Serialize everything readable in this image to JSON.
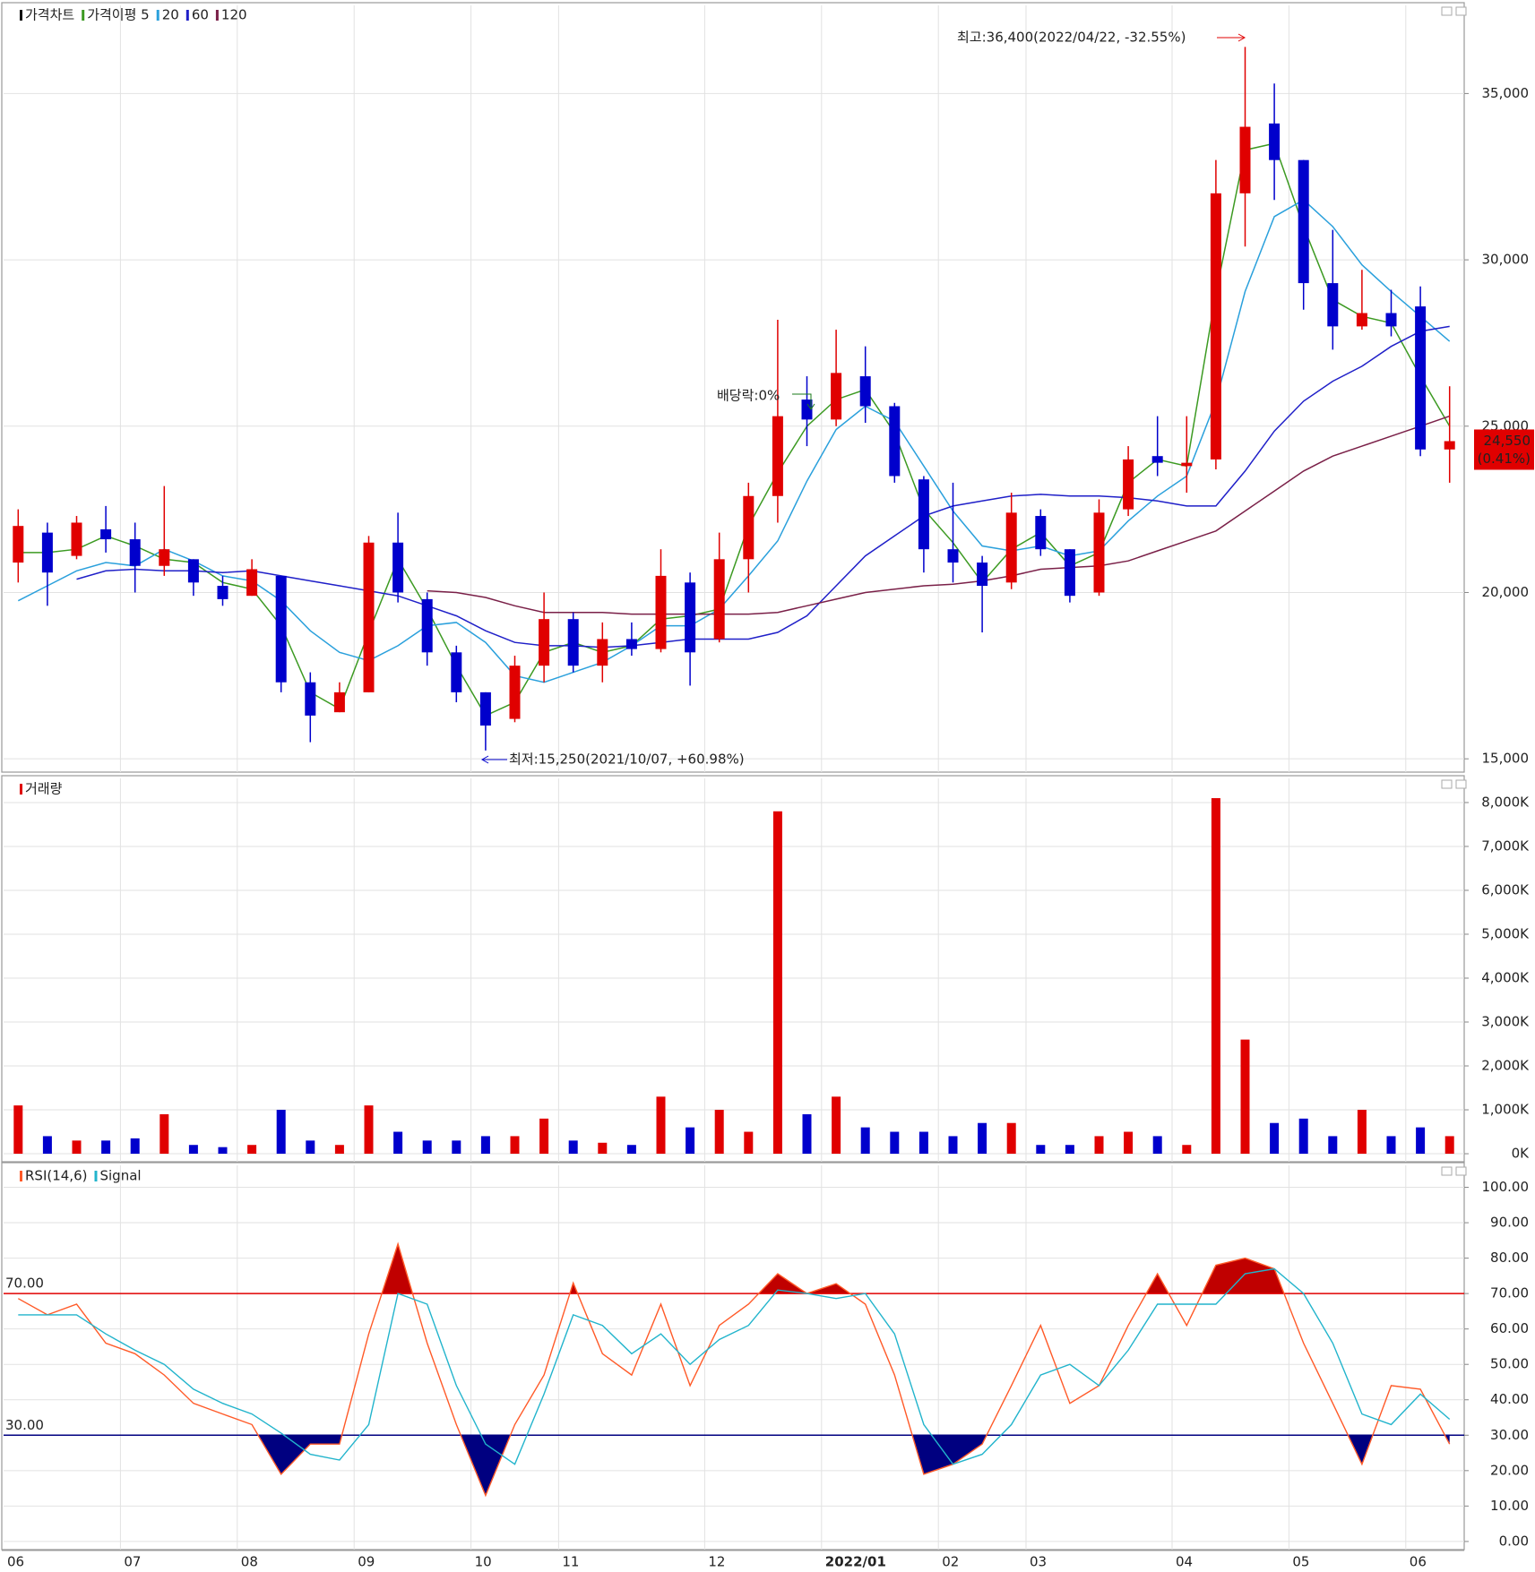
{
  "chart_data": [
    {
      "type": "candlestick",
      "name": "가격차트",
      "open": [
        20900,
        21800,
        21100,
        21900,
        21600,
        20800,
        21000,
        20200,
        19900,
        20500,
        17300,
        16400,
        17000,
        21500,
        19800,
        18200,
        17000,
        16200,
        17800,
        19200,
        17800,
        18600,
        18300,
        20300,
        18600,
        21000,
        22900,
        25800,
        25200,
        26500,
        25600,
        23400,
        21300,
        20900,
        20300,
        22300,
        21300,
        20000,
        22500,
        24100,
        23800,
        24000,
        32000,
        34100,
        33000,
        29300,
        28000,
        28400,
        28600,
        24300
      ],
      "high": [
        22500,
        22100,
        22300,
        22600,
        22100,
        23200,
        21000,
        20500,
        21000,
        20500,
        17600,
        17300,
        21700,
        22400,
        20000,
        18400,
        17000,
        18100,
        20000,
        19400,
        19100,
        19100,
        21300,
        20600,
        21800,
        23300,
        28200,
        26500,
        27900,
        27400,
        25700,
        23500,
        23300,
        21100,
        23000,
        22500,
        21300,
        22800,
        24400,
        25300,
        25300,
        33000,
        36400,
        35300,
        33000,
        30900,
        29700,
        29100,
        29200,
        26200
      ],
      "low": [
        20300,
        19600,
        21000,
        21200,
        20000,
        20500,
        19900,
        19600,
        19900,
        17000,
        15500,
        16400,
        17000,
        19700,
        17800,
        16700,
        15250,
        16100,
        17300,
        17600,
        17300,
        18100,
        18200,
        17200,
        18500,
        20000,
        22100,
        24400,
        25000,
        25100,
        23300,
        20600,
        20300,
        18800,
        20100,
        21100,
        19700,
        19900,
        22300,
        23500,
        23000,
        23700,
        30400,
        31800,
        28500,
        27300,
        27900,
        27700,
        24100,
        23300
      ],
      "close": [
        22000,
        20600,
        22100,
        21600,
        20800,
        21300,
        20300,
        19800,
        20700,
        17300,
        16300,
        17000,
        21500,
        20000,
        18200,
        17000,
        16000,
        17800,
        19200,
        17800,
        18600,
        18300,
        20500,
        18200,
        21000,
        22900,
        25300,
        25200,
        26600,
        25600,
        23500,
        21300,
        20900,
        20200,
        22400,
        21300,
        19900,
        22400,
        24000,
        23900,
        23900,
        32000,
        34000,
        33000,
        29300,
        28000,
        28400,
        28000,
        24300,
        24550
      ],
      "up_color": "#e00000",
      "down_color": "#0000cc",
      "series": [
        {
          "name": "가격이평 5",
          "color": "#3c9a22",
          "values": [
            21200,
            21200,
            21300,
            21700,
            21400,
            21000,
            20900,
            20300,
            20100,
            19000,
            17000,
            16500,
            18800,
            21000,
            19500,
            17800,
            16300,
            16700,
            18200,
            18500,
            18200,
            18400,
            19200,
            19300,
            19500,
            22000,
            23600,
            25000,
            25800,
            26100,
            24800,
            22500,
            21500,
            20300,
            21300,
            21800,
            20800,
            21200,
            23300,
            24000,
            23800,
            29000,
            33300,
            33500,
            31000,
            28800,
            28300,
            28100,
            26500,
            25000
          ]
        },
        {
          "name": "20",
          "color": "#2aa0dc",
          "values": [
            19750,
            20200,
            20650,
            20900,
            20800,
            21300,
            20950,
            20500,
            20350,
            19750,
            18850,
            18200,
            17950,
            18400,
            19000,
            19100,
            18500,
            17500,
            17300,
            17600,
            17900,
            18400,
            19000,
            19000,
            19500,
            20500,
            21550,
            23350,
            24900,
            25600,
            25150,
            23800,
            22450,
            21400,
            21250,
            21400,
            21100,
            21250,
            22150,
            22900,
            23500,
            25750,
            29050,
            31300,
            31800,
            31000,
            29850,
            29050,
            28300,
            27550
          ]
        },
        {
          "name": "60",
          "color": "#1f1fc8",
          "values": [
            null,
            null,
            20400,
            20650,
            20700,
            20650,
            20650,
            20600,
            20650,
            20500,
            20350,
            20200,
            20050,
            19900,
            19600,
            19300,
            18850,
            18500,
            18400,
            18400,
            18350,
            18400,
            18500,
            18600,
            18600,
            18600,
            18800,
            19300,
            20200,
            21100,
            21700,
            22300,
            22600,
            22750,
            22900,
            22950,
            22900,
            22900,
            22850,
            22750,
            22600,
            22600,
            23650,
            24850,
            25750,
            26350,
            26800,
            27400,
            27850,
            28000
          ]
        },
        {
          "name": "120",
          "color": "#7a2048",
          "values": [
            null,
            null,
            null,
            null,
            null,
            null,
            null,
            null,
            null,
            null,
            null,
            null,
            null,
            null,
            20050,
            20000,
            19850,
            19600,
            19400,
            19400,
            19400,
            19350,
            19350,
            19350,
            19350,
            19350,
            19400,
            19600,
            19800,
            20000,
            20100,
            20200,
            20250,
            20350,
            20500,
            20700,
            20750,
            20800,
            20950,
            21250,
            21550,
            21850,
            22450,
            23050,
            23650,
            24100,
            24400,
            24700,
            25000,
            25300
          ]
        }
      ],
      "ylim": [
        14600,
        37650
      ],
      "yticks": [
        {
          "value": 15000,
          "label": "15,000"
        },
        {
          "value": 20000,
          "label": "20,000"
        },
        {
          "value": 25000,
          "label": "25,000"
        },
        {
          "value": 30000,
          "label": "30,000"
        },
        {
          "value": 35000,
          "label": "35,000"
        }
      ],
      "grid": true,
      "annotations": [
        "최고:36,400(2022/04/22, -32.55%)",
        "최저:15,250(2021/10/07, +60.98%)",
        "배당락:0%"
      ],
      "last_price": {
        "value": 24550,
        "label": "24,550"
      },
      "last_change": "(0.41%)"
    },
    {
      "type": "bar",
      "name": "거래량",
      "values": [
        1100,
        400,
        300,
        300,
        350,
        900,
        200,
        150,
        200,
        1000,
        300,
        200,
        1100,
        500,
        300,
        300,
        400,
        400,
        800,
        300,
        250,
        200,
        1300,
        600,
        1000,
        500,
        7800,
        900,
        1300,
        600,
        500,
        500,
        400,
        700,
        700,
        200,
        200,
        400,
        500,
        400,
        200,
        8100,
        2600,
        700,
        800,
        400,
        1000,
        400,
        600,
        400
      ],
      "colors": [
        "#e00000",
        "#0000cc",
        "#e00000",
        "#0000cc",
        "#0000cc",
        "#e00000",
        "#0000cc",
        "#0000cc",
        "#e00000",
        "#0000cc",
        "#0000cc",
        "#e00000",
        "#e00000",
        "#0000cc",
        "#0000cc",
        "#0000cc",
        "#0000cc",
        "#e00000",
        "#e00000",
        "#0000cc",
        "#e00000",
        "#0000cc",
        "#e00000",
        "#0000cc",
        "#e00000",
        "#e00000",
        "#e00000",
        "#0000cc",
        "#e00000",
        "#0000cc",
        "#0000cc",
        "#0000cc",
        "#0000cc",
        "#0000cc",
        "#e00000",
        "#0000cc",
        "#0000cc",
        "#e00000",
        "#e00000",
        "#0000cc",
        "#e00000",
        "#e00000",
        "#e00000",
        "#0000cc",
        "#0000cc",
        "#0000cc",
        "#e00000",
        "#0000cc",
        "#0000cc",
        "#e00000"
      ],
      "legend_color": "#e00000",
      "ylim": [
        -183,
        8550
      ],
      "yticks": [
        {
          "value": 0,
          "label": "0K"
        },
        {
          "value": 1000,
          "label": "1,000K"
        },
        {
          "value": 2000,
          "label": "2,000K"
        },
        {
          "value": 3000,
          "label": "3,000K"
        },
        {
          "value": 4000,
          "label": "4,000K"
        },
        {
          "value": 5000,
          "label": "5,000K"
        },
        {
          "value": 6000,
          "label": "6,000K"
        },
        {
          "value": 7000,
          "label": "7,000K"
        },
        {
          "value": 8000,
          "label": "8,000K"
        }
      ],
      "grid": true
    },
    {
      "type": "line",
      "categories": [
        "06",
        null,
        null,
        null,
        "07",
        null,
        null,
        null,
        "08",
        null,
        null,
        null,
        "09",
        null,
        null,
        null,
        "10",
        null,
        null,
        "11",
        null,
        null,
        null,
        null,
        "12",
        null,
        null,
        null,
        "2022/01",
        null,
        null,
        null,
        "02",
        null,
        null,
        "03",
        null,
        null,
        null,
        null,
        "04",
        null,
        null,
        null,
        "05",
        null,
        null,
        null,
        "06",
        null
      ],
      "series": [
        {
          "name": "RSI(14,6)",
          "color": "#ff5a28",
          "values": [
            68.6,
            64,
            67,
            56,
            53,
            47,
            39,
            36,
            33,
            19,
            27.5,
            27.5,
            58.6,
            84,
            56,
            33,
            13,
            33,
            47,
            73,
            53,
            47,
            67,
            44,
            61,
            67,
            75.6,
            70,
            72.8,
            67,
            47,
            19,
            21.8,
            27.5,
            44,
            61,
            39,
            44,
            61,
            75.6,
            61,
            78,
            80,
            77,
            56,
            39,
            21.8,
            44,
            43,
            27.5
          ]
        },
        {
          "name": "Signal",
          "color": "#22b4cc",
          "values": [
            64,
            64,
            64,
            58.6,
            54,
            50,
            43,
            39,
            36,
            30.6,
            24.6,
            23,
            33,
            70,
            67,
            44,
            27.5,
            21.8,
            41.6,
            64,
            61,
            53,
            58.6,
            50,
            57,
            61,
            71,
            70,
            68.6,
            70,
            58.6,
            33,
            21.8,
            24.6,
            33,
            47,
            50,
            44,
            54,
            67,
            67,
            67,
            75.6,
            77,
            70,
            56,
            36,
            33,
            41.6,
            34.5
          ]
        }
      ],
      "levels": [
        {
          "value": 70,
          "label": "70.00",
          "color": "#e00000",
          "fill": "#c00000"
        },
        {
          "value": 30,
          "label": "30.00",
          "color": "#000080",
          "fill": "#000080"
        }
      ],
      "ylim": [
        -2.3,
        106.2
      ],
      "yticks": [
        {
          "value": 0,
          "label": "0.00"
        },
        {
          "value": 10,
          "label": "10.00"
        },
        {
          "value": 20,
          "label": "20.00"
        },
        {
          "value": 30,
          "label": "30.00"
        },
        {
          "value": 40,
          "label": "40.00"
        },
        {
          "value": 50,
          "label": "50.00"
        },
        {
          "value": 60,
          "label": "60.00"
        },
        {
          "value": 70,
          "label": "70.00"
        },
        {
          "value": 80,
          "label": "80.00"
        },
        {
          "value": 90,
          "label": "90.00"
        },
        {
          "value": 100,
          "label": "100.00"
        }
      ],
      "grid": true
    }
  ]
}
